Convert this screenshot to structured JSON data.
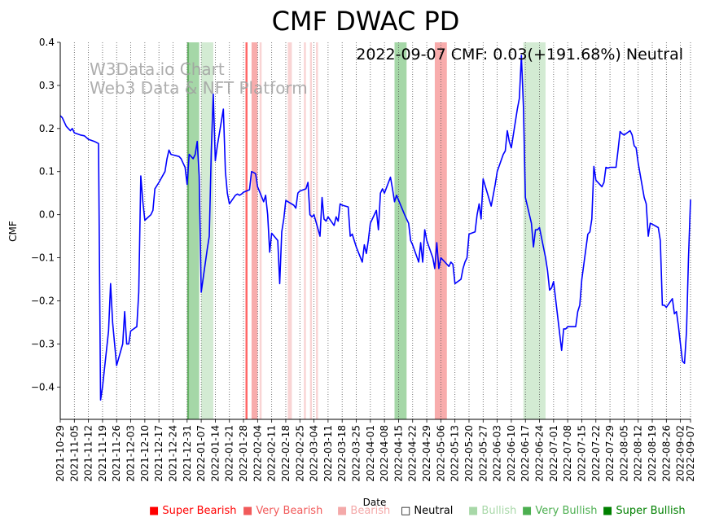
{
  "chart_data": {
    "type": "line",
    "title": "CMF DWAC PD",
    "annotation": "2022-09-07 CMF: 0.03(+191.68%) Neutral",
    "watermark": [
      "W3Data.io Chart",
      "Web3 Data & NFT Platform"
    ],
    "xlabel": "Date",
    "ylabel": "CMF",
    "xlim": [
      "2021-10-29",
      "2022-09-07"
    ],
    "ylim": [
      -0.475,
      0.4
    ],
    "yticks": [
      -0.4,
      -0.3,
      -0.2,
      -0.1,
      0.0,
      0.1,
      0.2,
      0.3,
      0.4
    ],
    "ytick_labels": [
      "−0.4",
      "−0.3",
      "−0.2",
      "−0.1",
      "0.0",
      "0.1",
      "0.2",
      "0.3",
      "0.4"
    ],
    "xticks": [
      "2021-10-29",
      "2021-11-05",
      "2021-11-12",
      "2021-11-19",
      "2021-11-26",
      "2021-12-03",
      "2021-12-10",
      "2021-12-17",
      "2021-12-24",
      "2021-12-31",
      "2022-01-07",
      "2022-01-14",
      "2022-01-21",
      "2022-01-28",
      "2022-02-04",
      "2022-02-11",
      "2022-02-18",
      "2022-02-25",
      "2022-03-04",
      "2022-03-11",
      "2022-03-18",
      "2022-03-25",
      "2022-04-01",
      "2022-04-08",
      "2022-04-15",
      "2022-04-22",
      "2022-04-29",
      "2022-05-06",
      "2022-05-13",
      "2022-05-20",
      "2022-05-27",
      "2022-06-03",
      "2022-06-10",
      "2022-06-17",
      "2022-06-24",
      "2022-07-01",
      "2022-07-08",
      "2022-07-15",
      "2022-07-22",
      "2022-07-29",
      "2022-08-05",
      "2022-08-12",
      "2022-08-19",
      "2022-08-26",
      "2022-09-02",
      "2022-09-07"
    ],
    "grid": "vertical dotted",
    "line_color": "#0000ff",
    "series": [
      {
        "points": [
          [
            "2021-10-29",
            0.23
          ],
          [
            "2021-10-30",
            0.225
          ],
          [
            "2021-11-01",
            0.205
          ],
          [
            "2021-11-03",
            0.195
          ],
          [
            "2021-11-04",
            0.2
          ],
          [
            "2021-11-05",
            0.19
          ],
          [
            "2021-11-08",
            0.185
          ],
          [
            "2021-11-10",
            0.183
          ],
          [
            "2021-11-12",
            0.175
          ],
          [
            "2021-11-15",
            0.17
          ],
          [
            "2021-11-17",
            0.165
          ],
          [
            "2021-11-18",
            -0.43
          ],
          [
            "2021-11-19",
            -0.4
          ],
          [
            "2021-11-22",
            -0.27
          ],
          [
            "2021-11-23",
            -0.16
          ],
          [
            "2021-11-24",
            -0.25
          ],
          [
            "2021-11-26",
            -0.35
          ],
          [
            "2021-11-29",
            -0.3
          ],
          [
            "2021-11-30",
            -0.225
          ],
          [
            "2021-12-01",
            -0.3
          ],
          [
            "2021-12-02",
            -0.3
          ],
          [
            "2021-12-03",
            -0.27
          ],
          [
            "2021-12-06",
            -0.26
          ],
          [
            "2021-12-07",
            -0.18
          ],
          [
            "2021-12-08",
            0.09
          ],
          [
            "2021-12-09",
            0.03
          ],
          [
            "2021-12-10",
            -0.013
          ],
          [
            "2021-12-13",
            0.0
          ],
          [
            "2021-12-14",
            0.01
          ],
          [
            "2021-12-15",
            0.06
          ],
          [
            "2021-12-17",
            0.075
          ],
          [
            "2021-12-20",
            0.1
          ],
          [
            "2021-12-21",
            0.13
          ],
          [
            "2021-12-22",
            0.15
          ],
          [
            "2021-12-23",
            0.14
          ],
          [
            "2021-12-27",
            0.135
          ],
          [
            "2021-12-28",
            0.13
          ],
          [
            "2021-12-29",
            0.12
          ],
          [
            "2021-12-30",
            0.11
          ],
          [
            "2021-12-31",
            0.07
          ],
          [
            "2022-01-01",
            0.14
          ],
          [
            "2022-01-03",
            0.13
          ],
          [
            "2022-01-04",
            0.14
          ],
          [
            "2022-01-05",
            0.17
          ],
          [
            "2022-01-06",
            0.09
          ],
          [
            "2022-01-07",
            -0.18
          ],
          [
            "2022-01-10",
            -0.08
          ],
          [
            "2022-01-11",
            -0.05
          ],
          [
            "2022-01-12",
            0.15
          ],
          [
            "2022-01-13",
            0.28
          ],
          [
            "2022-01-14",
            0.125
          ],
          [
            "2022-01-15",
            0.16
          ],
          [
            "2022-01-18",
            0.245
          ],
          [
            "2022-01-19",
            0.1
          ],
          [
            "2022-01-20",
            0.05
          ],
          [
            "2022-01-21",
            0.025
          ],
          [
            "2022-01-24",
            0.045
          ],
          [
            "2022-01-25",
            0.048
          ],
          [
            "2022-01-26",
            0.045
          ],
          [
            "2022-01-27",
            0.048
          ],
          [
            "2022-01-28",
            0.052
          ],
          [
            "2022-01-31",
            0.058
          ],
          [
            "2022-02-01",
            0.1
          ],
          [
            "2022-02-02",
            0.098
          ],
          [
            "2022-02-03",
            0.095
          ],
          [
            "2022-02-04",
            0.065
          ],
          [
            "2022-02-07",
            0.03
          ],
          [
            "2022-02-08",
            0.045
          ],
          [
            "2022-02-09",
            0.0
          ],
          [
            "2022-02-10",
            -0.087
          ],
          [
            "2022-02-11",
            -0.043
          ],
          [
            "2022-02-14",
            -0.06
          ],
          [
            "2022-02-15",
            -0.16
          ],
          [
            "2022-02-16",
            -0.04
          ],
          [
            "2022-02-17",
            -0.01
          ],
          [
            "2022-02-18",
            0.033
          ],
          [
            "2022-02-22",
            0.022
          ],
          [
            "2022-02-23",
            0.015
          ],
          [
            "2022-02-24",
            0.05
          ],
          [
            "2022-02-25",
            0.055
          ],
          [
            "2022-02-28",
            0.06
          ],
          [
            "2022-03-01",
            0.075
          ],
          [
            "2022-03-02",
            0.0
          ],
          [
            "2022-03-03",
            -0.005
          ],
          [
            "2022-03-04",
            0.0
          ],
          [
            "2022-03-07",
            -0.05
          ],
          [
            "2022-03-08",
            0.04
          ],
          [
            "2022-03-09",
            -0.01
          ],
          [
            "2022-03-10",
            -0.015
          ],
          [
            "2022-03-11",
            -0.005
          ],
          [
            "2022-03-14",
            -0.025
          ],
          [
            "2022-03-15",
            -0.005
          ],
          [
            "2022-03-16",
            -0.015
          ],
          [
            "2022-03-17",
            0.025
          ],
          [
            "2022-03-18",
            0.022
          ],
          [
            "2022-03-21",
            0.018
          ],
          [
            "2022-03-22",
            -0.05
          ],
          [
            "2022-03-23",
            -0.045
          ],
          [
            "2022-03-24",
            -0.06
          ],
          [
            "2022-03-25",
            -0.075
          ],
          [
            "2022-03-28",
            -0.11
          ],
          [
            "2022-03-29",
            -0.07
          ],
          [
            "2022-03-30",
            -0.09
          ],
          [
            "2022-03-31",
            -0.06
          ],
          [
            "2022-04-01",
            -0.02
          ],
          [
            "2022-04-04",
            0.01
          ],
          [
            "2022-04-05",
            -0.035
          ],
          [
            "2022-04-06",
            0.05
          ],
          [
            "2022-04-07",
            0.06
          ],
          [
            "2022-04-08",
            0.05
          ],
          [
            "2022-04-11",
            0.087
          ],
          [
            "2022-04-12",
            0.06
          ],
          [
            "2022-04-13",
            0.03
          ],
          [
            "2022-04-14",
            0.045
          ],
          [
            "2022-04-18",
            0.0
          ],
          [
            "2022-04-19",
            -0.01
          ],
          [
            "2022-04-20",
            -0.02
          ],
          [
            "2022-04-21",
            -0.06
          ],
          [
            "2022-04-22",
            -0.07
          ],
          [
            "2022-04-25",
            -0.11
          ],
          [
            "2022-04-26",
            -0.065
          ],
          [
            "2022-04-27",
            -0.11
          ],
          [
            "2022-04-28",
            -0.035
          ],
          [
            "2022-04-29",
            -0.06
          ],
          [
            "2022-05-02",
            -0.1
          ],
          [
            "2022-05-03",
            -0.125
          ],
          [
            "2022-05-04",
            -0.065
          ],
          [
            "2022-05-05",
            -0.125
          ],
          [
            "2022-05-06",
            -0.1
          ],
          [
            "2022-05-09",
            -0.115
          ],
          [
            "2022-05-10",
            -0.12
          ],
          [
            "2022-05-11",
            -0.11
          ],
          [
            "2022-05-12",
            -0.115
          ],
          [
            "2022-05-13",
            -0.16
          ],
          [
            "2022-05-16",
            -0.15
          ],
          [
            "2022-05-17",
            -0.125
          ],
          [
            "2022-05-18",
            -0.11
          ],
          [
            "2022-05-19",
            -0.1
          ],
          [
            "2022-05-20",
            -0.045
          ],
          [
            "2022-05-23",
            -0.04
          ],
          [
            "2022-05-24",
            0.0
          ],
          [
            "2022-05-25",
            0.025
          ],
          [
            "2022-05-26",
            -0.01
          ],
          [
            "2022-05-27",
            0.083
          ],
          [
            "2022-05-31",
            0.02
          ],
          [
            "2022-06-01",
            0.045
          ],
          [
            "2022-06-02",
            0.07
          ],
          [
            "2022-06-03",
            0.1
          ],
          [
            "2022-06-06",
            0.14
          ],
          [
            "2022-06-07",
            0.148
          ],
          [
            "2022-06-08",
            0.195
          ],
          [
            "2022-06-09",
            0.17
          ],
          [
            "2022-06-10",
            0.155
          ],
          [
            "2022-06-13",
            0.245
          ],
          [
            "2022-06-14",
            0.27
          ],
          [
            "2022-06-15",
            0.37
          ],
          [
            "2022-06-16",
            0.25
          ],
          [
            "2022-06-17",
            0.04
          ],
          [
            "2022-06-20",
            -0.02
          ],
          [
            "2022-06-21",
            -0.075
          ],
          [
            "2022-06-22",
            -0.035
          ],
          [
            "2022-06-23",
            -0.035
          ],
          [
            "2022-06-24",
            -0.03
          ],
          [
            "2022-06-27",
            -0.1
          ],
          [
            "2022-06-28",
            -0.13
          ],
          [
            "2022-06-29",
            -0.175
          ],
          [
            "2022-06-30",
            -0.17
          ],
          [
            "2022-07-01",
            -0.155
          ],
          [
            "2022-07-05",
            -0.315
          ],
          [
            "2022-07-06",
            -0.265
          ],
          [
            "2022-07-07",
            -0.265
          ],
          [
            "2022-07-08",
            -0.26
          ],
          [
            "2022-07-11",
            -0.26
          ],
          [
            "2022-07-12",
            -0.26
          ],
          [
            "2022-07-13",
            -0.225
          ],
          [
            "2022-07-14",
            -0.21
          ],
          [
            "2022-07-15",
            -0.15
          ],
          [
            "2022-07-18",
            -0.045
          ],
          [
            "2022-07-19",
            -0.04
          ],
          [
            "2022-07-20",
            -0.01
          ],
          [
            "2022-07-21",
            0.112
          ],
          [
            "2022-07-22",
            0.08
          ],
          [
            "2022-07-25",
            0.065
          ],
          [
            "2022-07-26",
            0.075
          ],
          [
            "2022-07-27",
            0.11
          ],
          [
            "2022-07-28",
            0.108
          ],
          [
            "2022-07-29",
            0.11
          ],
          [
            "2022-08-01",
            0.11
          ],
          [
            "2022-08-02",
            0.15
          ],
          [
            "2022-08-03",
            0.193
          ],
          [
            "2022-08-04",
            0.188
          ],
          [
            "2022-08-05",
            0.185
          ],
          [
            "2022-08-08",
            0.195
          ],
          [
            "2022-08-09",
            0.185
          ],
          [
            "2022-08-10",
            0.16
          ],
          [
            "2022-08-11",
            0.155
          ],
          [
            "2022-08-12",
            0.12
          ],
          [
            "2022-08-15",
            0.04
          ],
          [
            "2022-08-16",
            0.025
          ],
          [
            "2022-08-17",
            -0.05
          ],
          [
            "2022-08-18",
            -0.02
          ],
          [
            "2022-08-19",
            -0.022
          ],
          [
            "2022-08-22",
            -0.03
          ],
          [
            "2022-08-23",
            -0.06
          ],
          [
            "2022-08-24",
            -0.21
          ],
          [
            "2022-08-25",
            -0.21
          ],
          [
            "2022-08-26",
            -0.215
          ],
          [
            "2022-08-29",
            -0.195
          ],
          [
            "2022-08-30",
            -0.23
          ],
          [
            "2022-08-31",
            -0.225
          ],
          [
            "2022-09-01",
            -0.26
          ],
          [
            "2022-09-02",
            -0.3
          ],
          [
            "2022-09-03",
            -0.34
          ],
          [
            "2022-09-04",
            -0.345
          ],
          [
            "2022-09-05",
            -0.27
          ],
          [
            "2022-09-06",
            -0.1
          ],
          [
            "2022-09-07",
            0.035
          ]
        ]
      }
    ],
    "bands": [
      {
        "start": "2021-12-31",
        "end": "2022-01-01",
        "level": "super-bullish"
      },
      {
        "start": "2022-01-01",
        "end": "2022-01-06",
        "level": "very-bullish"
      },
      {
        "start": "2022-01-07",
        "end": "2022-01-13",
        "level": "bullish"
      },
      {
        "start": "2022-01-29",
        "end": "2022-01-30",
        "level": "super-bearish"
      },
      {
        "start": "2022-02-01",
        "end": "2022-02-04",
        "level": "very-bearish"
      },
      {
        "start": "2022-02-05",
        "end": "2022-02-06",
        "level": "bearish"
      },
      {
        "start": "2022-02-19",
        "end": "2022-02-21",
        "level": "bearish"
      },
      {
        "start": "2022-02-27",
        "end": "2022-02-28",
        "level": "bearish"
      },
      {
        "start": "2022-03-02",
        "end": "2022-03-03",
        "level": "bearish"
      },
      {
        "start": "2022-03-05",
        "end": "2022-03-06",
        "level": "bearish"
      },
      {
        "start": "2022-04-13",
        "end": "2022-04-19",
        "level": "very-bullish"
      },
      {
        "start": "2022-05-03",
        "end": "2022-05-09",
        "level": "very-bearish"
      },
      {
        "start": "2022-06-16",
        "end": "2022-06-27",
        "level": "bullish"
      }
    ],
    "legend": [
      {
        "key": "super-bearish",
        "label": "■ Super Bearish",
        "color": "#ff0000"
      },
      {
        "key": "very-bearish",
        "label": "■ Very Bearish",
        "color": "#f15a5a"
      },
      {
        "key": "bearish",
        "label": "■ Bearish",
        "color": "#f4a9a9"
      },
      {
        "key": "neutral",
        "label": "□ Neutral",
        "color": "#000000"
      },
      {
        "key": "bullish",
        "label": "■ Bullish",
        "color": "#a8d8a8"
      },
      {
        "key": "very-bullish",
        "label": "■ Very Bullish",
        "color": "#4caf50"
      },
      {
        "key": "super-bullish",
        "label": "■ Super Bullish",
        "color": "#008000"
      }
    ],
    "legend_placement": "bottom",
    "band_colors": {
      "super-bearish": "#ff0000",
      "very-bearish": "#f15a5a",
      "bearish": "#f4a9a9",
      "bullish": "#a8d8a8",
      "very-bullish": "#4caf50",
      "super-bullish": "#008000"
    },
    "band_opacity": {
      "super-bearish": 0.6,
      "very-bearish": 0.5,
      "bearish": 0.5,
      "bullish": 0.5,
      "very-bullish": 0.5,
      "super-bullish": 0.6
    }
  }
}
